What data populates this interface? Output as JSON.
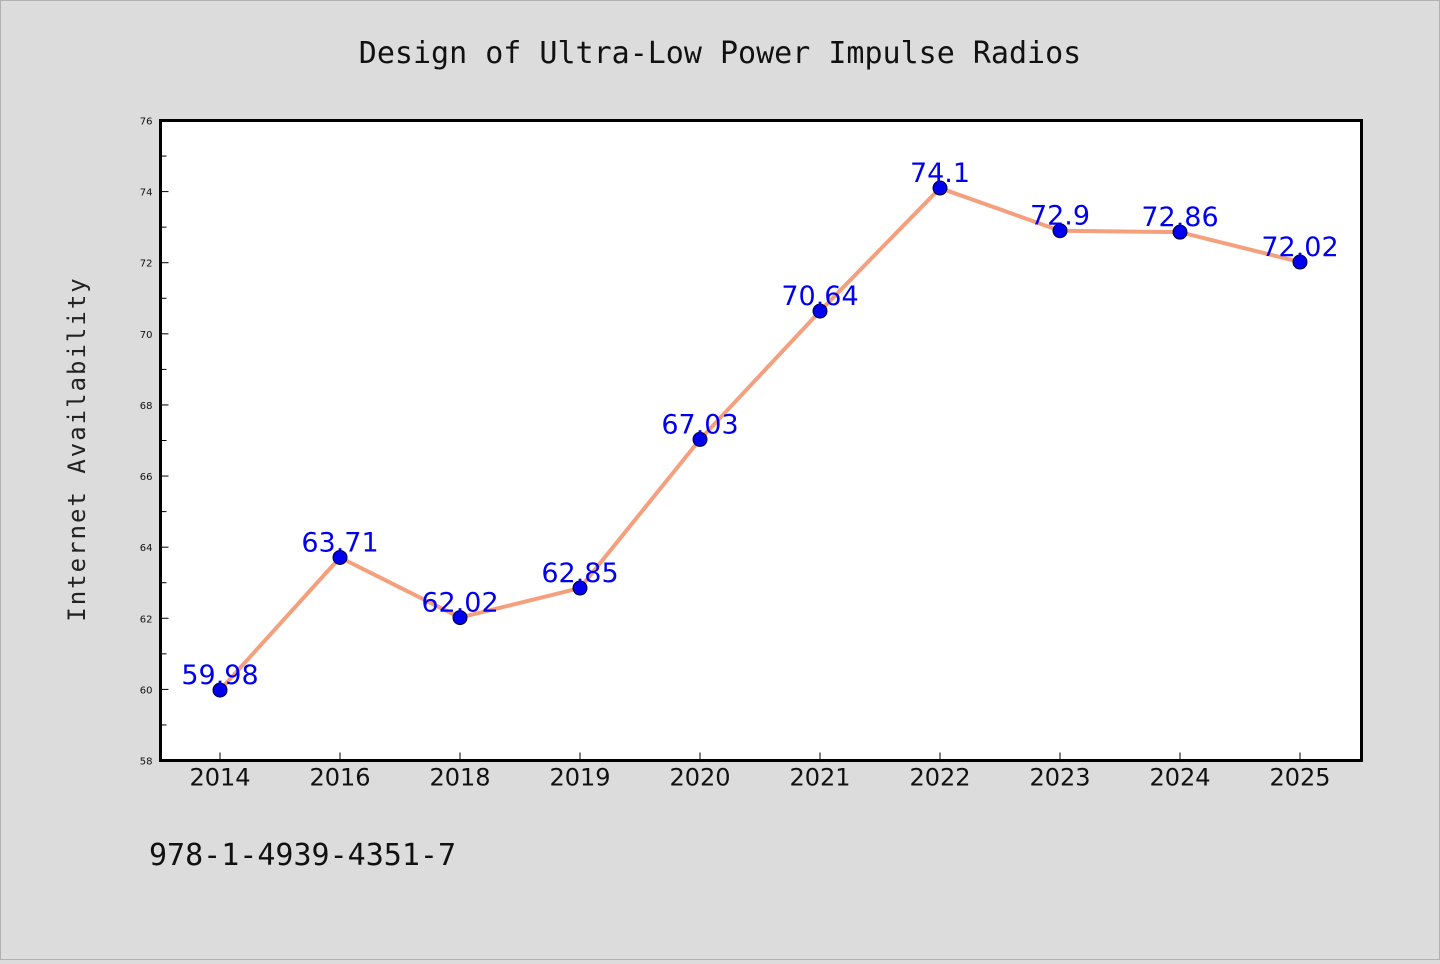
{
  "chart_data": {
    "type": "line",
    "title": "Design of Ultra-Low Power Impulse Radios",
    "xlabel": "",
    "ylabel": "Internet Availability",
    "categories": [
      "2014",
      "2016",
      "2018",
      "2019",
      "2020",
      "2021",
      "2022",
      "2023",
      "2024",
      "2025"
    ],
    "values": [
      59.98,
      63.71,
      62.02,
      62.85,
      67.03,
      70.64,
      74.1,
      72.9,
      72.86,
      72.02
    ],
    "data_labels": [
      "59.98",
      "63.71",
      "62.02",
      "62.85",
      "67.03",
      "70.64",
      "74.1",
      "72.9",
      "72.86",
      "72.02"
    ],
    "ylim": [
      58,
      76
    ],
    "yticks": [
      "58",
      "60",
      "62",
      "64",
      "66",
      "68",
      "70",
      "72",
      "74",
      "76"
    ],
    "grid": false,
    "legend": "none",
    "colors": {
      "line": "#f4a07f",
      "marker": "#0000ee",
      "data_label": "#0000ee",
      "plot_background": "#ffffff",
      "figure_background": "#dcdcdc"
    }
  },
  "footer": {
    "isbn": "978-1-4939-4351-7"
  }
}
